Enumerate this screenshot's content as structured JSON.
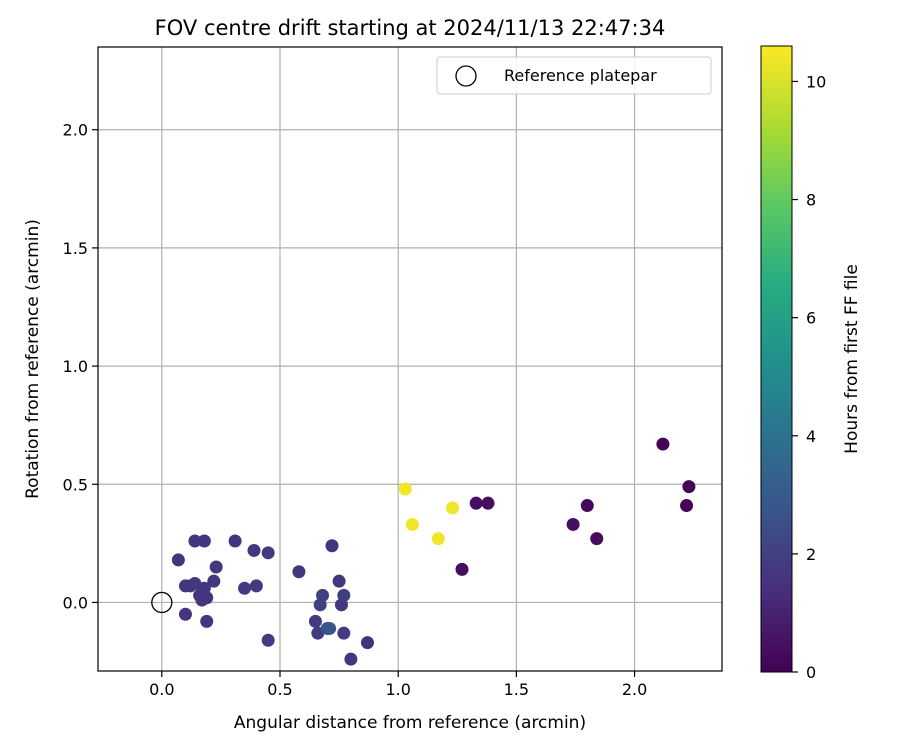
{
  "chart_data": {
    "type": "scatter",
    "title": "FOV centre drift starting at 2024/11/13 22:47:34",
    "xlabel": "Angular distance from reference (arcmin)",
    "ylabel": "Rotation from reference (arcmin)",
    "xlim": [
      -0.27,
      2.37
    ],
    "ylim": [
      -0.29,
      2.35
    ],
    "xticks": [
      "0.0",
      "0.5",
      "1.0",
      "1.5",
      "2.0"
    ],
    "xtick_values": [
      0.0,
      0.5,
      1.0,
      1.5,
      2.0
    ],
    "yticks": [
      "0.0",
      "0.5",
      "1.0",
      "1.5",
      "2.0"
    ],
    "ytick_values": [
      0.0,
      0.5,
      1.0,
      1.5,
      2.0
    ],
    "grid": true,
    "legend": {
      "location": "top-right",
      "entries": [
        "Reference platepar"
      ]
    },
    "reference_point": {
      "x": 0.0,
      "y": 0.0,
      "marker": "open-circle"
    },
    "colorbar": {
      "label": "Hours from first FF file",
      "colormap": "viridis",
      "range": [
        0,
        10.6
      ],
      "ticks": [
        "0",
        "2",
        "4",
        "6",
        "8",
        "10"
      ],
      "tick_values": [
        0,
        2,
        4,
        6,
        8,
        10
      ]
    },
    "points": [
      {
        "x": 0.07,
        "y": 0.18,
        "t": 1.6
      },
      {
        "x": 0.1,
        "y": 0.07,
        "t": 1.7
      },
      {
        "x": 0.1,
        "y": -0.05,
        "t": 1.6
      },
      {
        "x": 0.12,
        "y": 0.07,
        "t": 1.6
      },
      {
        "x": 0.14,
        "y": 0.08,
        "t": 1.7
      },
      {
        "x": 0.14,
        "y": 0.26,
        "t": 1.6
      },
      {
        "x": 0.16,
        "y": 0.03,
        "t": 1.6
      },
      {
        "x": 0.17,
        "y": 0.01,
        "t": 1.7
      },
      {
        "x": 0.18,
        "y": 0.06,
        "t": 1.7
      },
      {
        "x": 0.18,
        "y": 0.26,
        "t": 1.6
      },
      {
        "x": 0.19,
        "y": -0.08,
        "t": 1.6
      },
      {
        "x": 0.19,
        "y": 0.02,
        "t": 1.6
      },
      {
        "x": 0.22,
        "y": 0.09,
        "t": 1.7
      },
      {
        "x": 0.23,
        "y": 0.15,
        "t": 1.7
      },
      {
        "x": 0.31,
        "y": 0.26,
        "t": 1.6
      },
      {
        "x": 0.35,
        "y": 0.06,
        "t": 1.8
      },
      {
        "x": 0.39,
        "y": 0.22,
        "t": 1.7
      },
      {
        "x": 0.4,
        "y": 0.07,
        "t": 1.8
      },
      {
        "x": 0.45,
        "y": 0.21,
        "t": 1.8
      },
      {
        "x": 0.45,
        "y": -0.16,
        "t": 1.8
      },
      {
        "x": 0.58,
        "y": 0.13,
        "t": 1.7
      },
      {
        "x": 0.65,
        "y": -0.08,
        "t": 1.8
      },
      {
        "x": 0.66,
        "y": -0.13,
        "t": 1.9
      },
      {
        "x": 0.67,
        "y": -0.01,
        "t": 2.0
      },
      {
        "x": 0.68,
        "y": 0.03,
        "t": 2.0
      },
      {
        "x": 0.7,
        "y": -0.11,
        "t": 2.6
      },
      {
        "x": 0.71,
        "y": -0.11,
        "t": 2.8
      },
      {
        "x": 0.72,
        "y": 0.24,
        "t": 1.6
      },
      {
        "x": 0.75,
        "y": 0.09,
        "t": 1.6
      },
      {
        "x": 0.76,
        "y": -0.01,
        "t": 1.7
      },
      {
        "x": 0.77,
        "y": 0.03,
        "t": 1.9
      },
      {
        "x": 0.77,
        "y": -0.13,
        "t": 1.8
      },
      {
        "x": 0.8,
        "y": -0.24,
        "t": 1.6
      },
      {
        "x": 0.87,
        "y": -0.17,
        "t": 1.5
      },
      {
        "x": 1.03,
        "y": 0.48,
        "t": 10.4
      },
      {
        "x": 1.06,
        "y": 0.33,
        "t": 10.4
      },
      {
        "x": 1.17,
        "y": 0.27,
        "t": 10.4
      },
      {
        "x": 1.23,
        "y": 0.4,
        "t": 10.4
      },
      {
        "x": 1.27,
        "y": 0.14,
        "t": 0.4
      },
      {
        "x": 1.33,
        "y": 0.42,
        "t": 0.4
      },
      {
        "x": 1.38,
        "y": 0.42,
        "t": 0.4
      },
      {
        "x": 1.74,
        "y": 0.33,
        "t": 0.4
      },
      {
        "x": 1.8,
        "y": 0.41,
        "t": 0.2
      },
      {
        "x": 1.84,
        "y": 0.27,
        "t": 0.3
      },
      {
        "x": 2.12,
        "y": 0.67,
        "t": 0.1
      },
      {
        "x": 2.22,
        "y": 0.41,
        "t": 0.1
      },
      {
        "x": 2.23,
        "y": 0.49,
        "t": 0.1
      }
    ]
  }
}
